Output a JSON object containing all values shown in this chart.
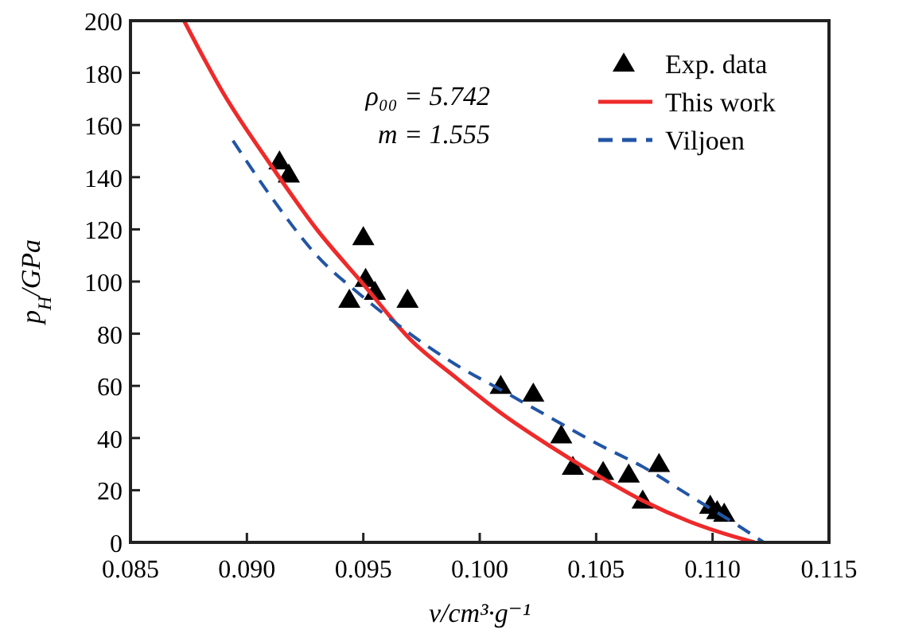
{
  "chart_data": {
    "type": "scatter",
    "xlabel": "v/cm³·g⁻¹",
    "ylabel": "p$_{H}$/GPa",
    "xlim": [
      0.085,
      0.115
    ],
    "xticks": [
      {
        "value": 0.085,
        "label": "0.085"
      },
      {
        "value": 0.09,
        "label": "0.090"
      },
      {
        "value": 0.095,
        "label": "0.095"
      },
      {
        "value": 0.1,
        "label": "0.100"
      },
      {
        "value": 0.105,
        "label": "0.105"
      },
      {
        "value": 0.11,
        "label": "0.110"
      },
      {
        "value": 0.115,
        "label": "0.115"
      }
    ],
    "ylim": [
      0,
      200
    ],
    "yticks": [
      0,
      20,
      40,
      60,
      80,
      100,
      120,
      140,
      160,
      180,
      200
    ],
    "legend": "top right",
    "grid": false,
    "annotations": [
      "ρ₀₀ = 5.742",
      "m = 1.555"
    ],
    "series": [
      {
        "name": "Exp. data",
        "marker": "triangle",
        "color": "#000000",
        "x": [
          0.0914,
          0.0918,
          0.095,
          0.0944,
          0.0951,
          0.0955,
          0.0969,
          0.1009,
          0.1023,
          0.1035,
          0.104,
          0.1053,
          0.1064,
          0.107,
          0.1077,
          0.1099,
          0.1102,
          0.1105
        ],
        "values": [
          146,
          141,
          117,
          93,
          101,
          96,
          93,
          60,
          57,
          41,
          29,
          27,
          26,
          16,
          30,
          14,
          12,
          11
        ]
      },
      {
        "name": "This work",
        "type": "line",
        "line_style": "solid",
        "color": "#ee2a2a",
        "x": [
          0.0873,
          0.089,
          0.091,
          0.093,
          0.095,
          0.097,
          0.099,
          0.101,
          0.103,
          0.105,
          0.107,
          0.109,
          0.111,
          0.1118
        ],
        "values": [
          200,
          172,
          145,
          120,
          99,
          78,
          63,
          49,
          37,
          26,
          16,
          8,
          2,
          0
        ]
      },
      {
        "name": "Viljoen",
        "type": "line",
        "line_style": "dashed",
        "color": "#2255a4",
        "x": [
          0.0894,
          0.091,
          0.093,
          0.095,
          0.097,
          0.099,
          0.101,
          0.103,
          0.105,
          0.107,
          0.109,
          0.111,
          0.1122
        ],
        "values": [
          154,
          133,
          110,
          94,
          80,
          68,
          58,
          48,
          38,
          29,
          18,
          7,
          0
        ]
      }
    ]
  }
}
